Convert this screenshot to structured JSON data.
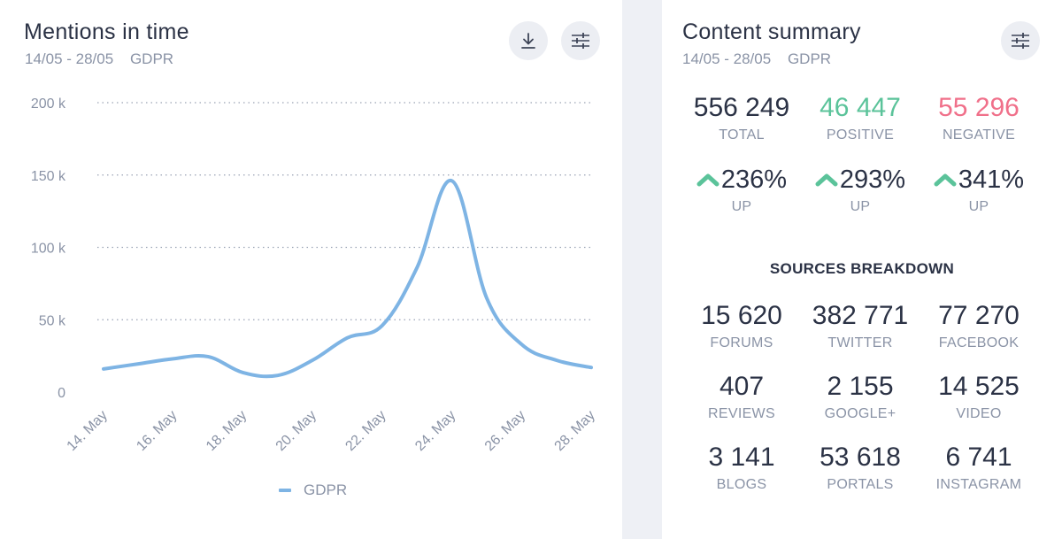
{
  "mentions": {
    "title": "Mentions in time",
    "date_range": "14/05 - 28/05",
    "topic": "GDPR",
    "download_icon": "download-icon",
    "settings_icon": "sliders-icon",
    "legend_label": "GDPR"
  },
  "chart_data": {
    "type": "line",
    "x": [
      "14. May",
      "15. May",
      "16. May",
      "17. May",
      "18. May",
      "19. May",
      "20. May",
      "21. May",
      "22. May",
      "23. May",
      "24. May",
      "25. May",
      "26. May",
      "27. May",
      "28. May"
    ],
    "tick_labels": [
      "14. May",
      "16. May",
      "18. May",
      "20. May",
      "22. May",
      "24. May",
      "26. May",
      "28. May"
    ],
    "y_tick_labels": [
      "0",
      "50 k",
      "100 k",
      "150 k",
      "200 k"
    ],
    "ylim": [
      0,
      200000
    ],
    "series": [
      {
        "name": "GDPR",
        "color": "#7eb4e4",
        "values": [
          16000,
          19500,
          23000,
          24500,
          13500,
          11500,
          22000,
          37500,
          46000,
          86000,
          146000,
          65000,
          33000,
          22000,
          17000
        ]
      }
    ],
    "grid": true,
    "legend": "bottom-center",
    "xlabel": "",
    "ylabel": ""
  },
  "summary": {
    "title": "Content summary",
    "date_range": "14/05 - 28/05",
    "topic": "GDPR",
    "settings_icon": "sliders-icon",
    "totals": [
      {
        "value": "556 249",
        "label": "TOTAL",
        "tone": "neutral"
      },
      {
        "value": "46 447",
        "label": "POSITIVE",
        "tone": "positive"
      },
      {
        "value": "55 296",
        "label": "NEGATIVE",
        "tone": "negative"
      }
    ],
    "changes": [
      {
        "value": "236%",
        "label": "UP",
        "icon": "arrow-up-icon"
      },
      {
        "value": "293%",
        "label": "UP",
        "icon": "arrow-up-icon"
      },
      {
        "value": "341%",
        "label": "UP",
        "icon": "arrow-up-icon"
      }
    ],
    "sources_title": "SOURCES BREAKDOWN",
    "sources": [
      {
        "value": "15 620",
        "label": "FORUMS"
      },
      {
        "value": "382 771",
        "label": "TWITTER"
      },
      {
        "value": "77 270",
        "label": "FACEBOOK"
      },
      {
        "value": "407",
        "label": "REVIEWS"
      },
      {
        "value": "2 155",
        "label": "GOOGLE+"
      },
      {
        "value": "14 525",
        "label": "VIDEO"
      },
      {
        "value": "3 141",
        "label": "BLOGS"
      },
      {
        "value": "53 618",
        "label": "PORTALS"
      },
      {
        "value": "6 741",
        "label": "INSTAGRAM"
      }
    ],
    "colors": {
      "positive": "#5bc39a",
      "negative": "#f0708a",
      "neutral": "#2b3245"
    }
  }
}
